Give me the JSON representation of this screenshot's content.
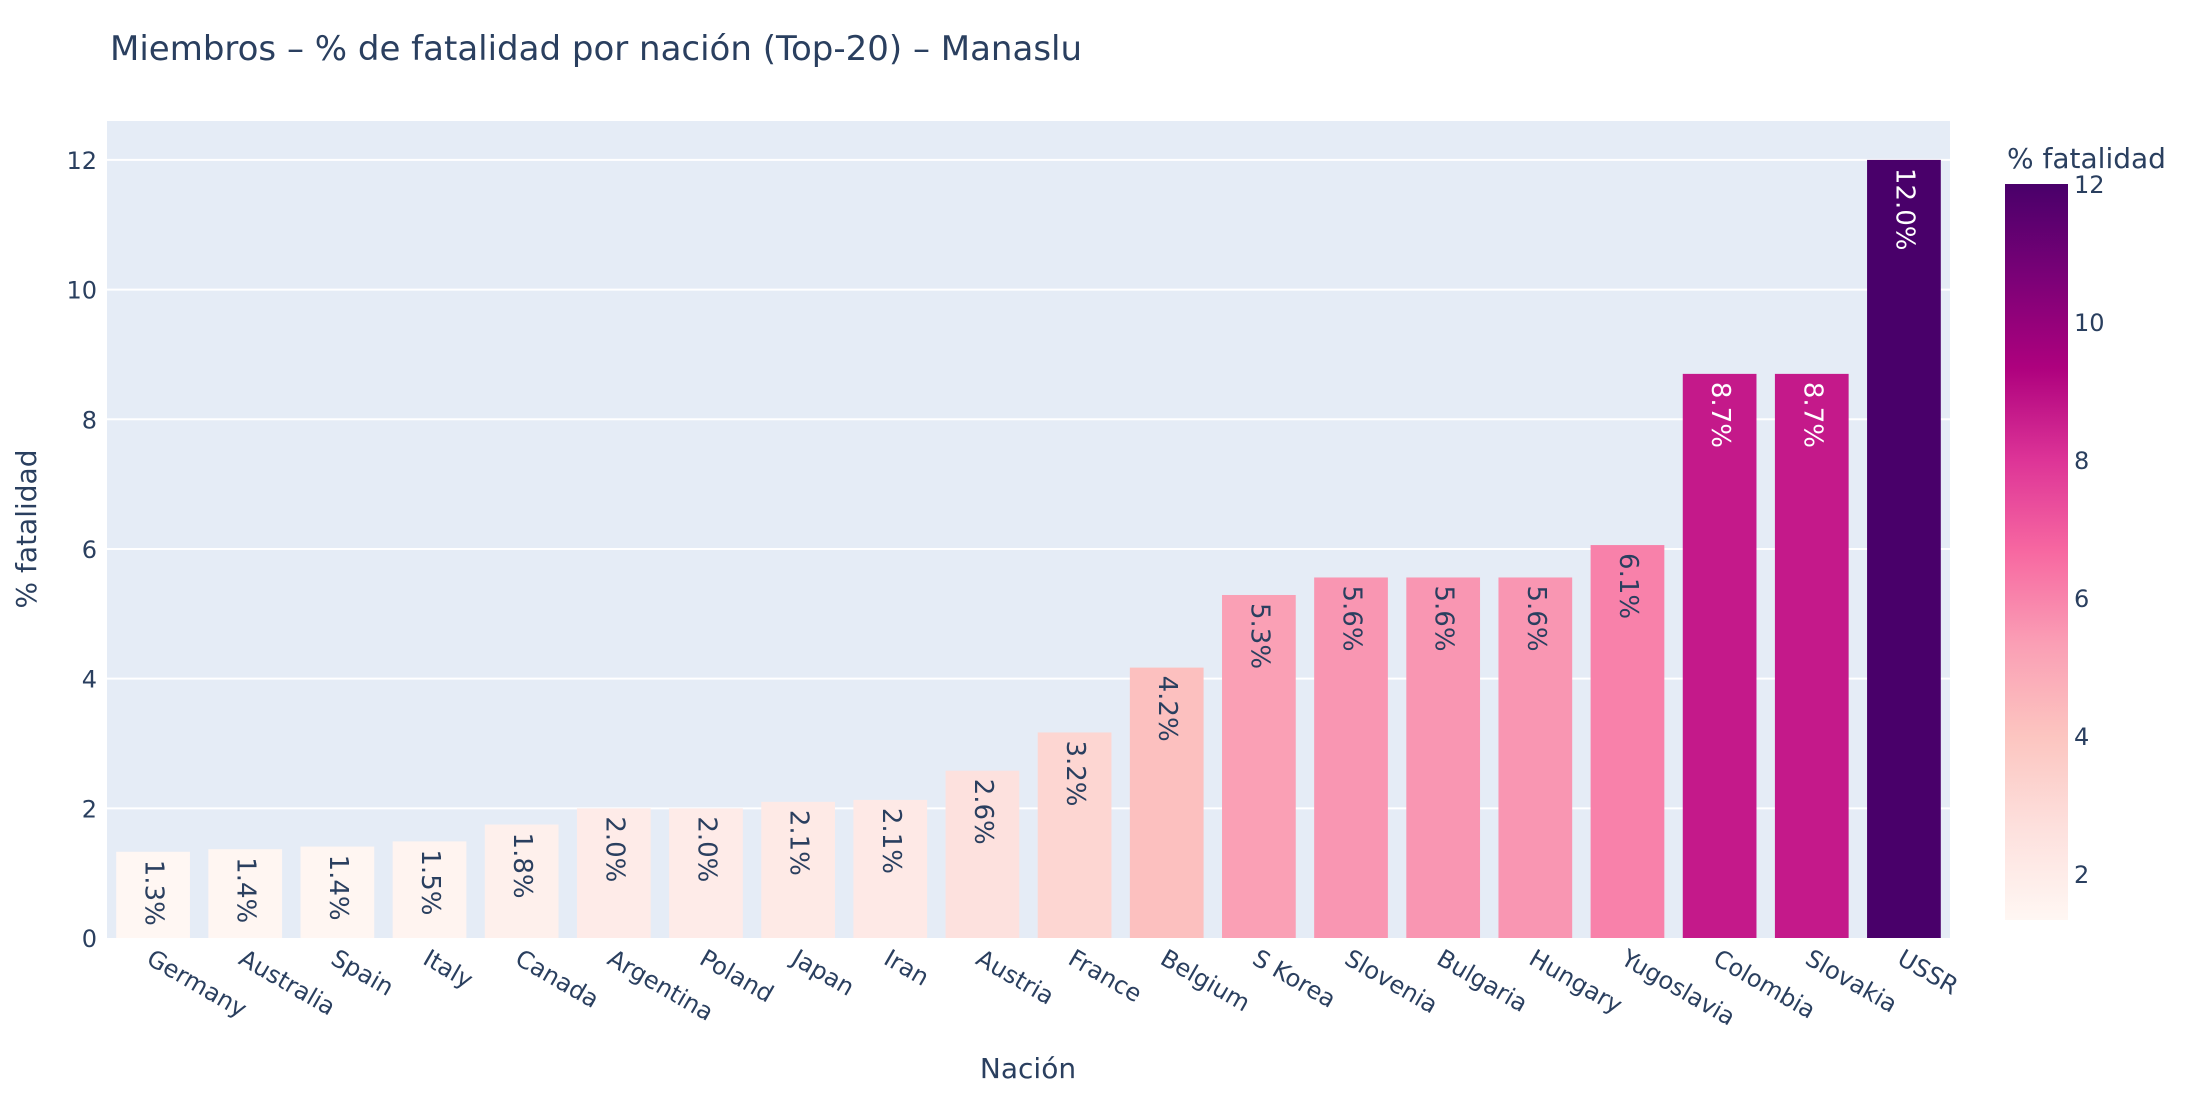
{
  "chart_data": {
    "type": "bar",
    "title": "Miembros – % de fatalidad por nación (Top-20) – Manaslu",
    "xlabel": "Nación",
    "ylabel": "% fatalidad",
    "ylim": [
      0,
      12.6
    ],
    "yticks": [
      0,
      2,
      4,
      6,
      8,
      10,
      12
    ],
    "grid": true,
    "categories": [
      "Germany",
      "Australia",
      "Spain",
      "Italy",
      "Canada",
      "Argentina",
      "Poland",
      "Japan",
      "Iran",
      "Austria",
      "France",
      "Belgium",
      "S Korea",
      "Slovenia",
      "Bulgaria",
      "Hungary",
      "Yugoslavia",
      "Colombia",
      "Slovakia",
      "USSR"
    ],
    "values": [
      1.33,
      1.37,
      1.41,
      1.49,
      1.75,
      2.0,
      2.0,
      2.1,
      2.13,
      2.58,
      3.17,
      4.17,
      5.29,
      5.56,
      5.56,
      5.56,
      6.06,
      8.7,
      8.7,
      12.0
    ],
    "labels": [
      "1.3%",
      "1.4%",
      "1.4%",
      "1.5%",
      "1.8%",
      "2.0%",
      "2.0%",
      "2.1%",
      "2.1%",
      "2.6%",
      "3.2%",
      "4.2%",
      "5.3%",
      "5.6%",
      "5.6%",
      "5.6%",
      "6.1%",
      "8.7%",
      "8.7%",
      "12.0%"
    ],
    "colorscale": {
      "name": "RdPu",
      "title": "% fatalidad",
      "range": [
        1.33,
        12.0
      ],
      "ticks": [
        2,
        4,
        6,
        8,
        10,
        12
      ],
      "stops": [
        "#fff7f3",
        "#fde0dd",
        "#fcc5c0",
        "#fa9fb5",
        "#f768a1",
        "#dd3497",
        "#ae017e",
        "#7a0177",
        "#49006a"
      ]
    },
    "colors": {
      "plot_background": "#e5ecf6",
      "gridline": "#ffffff",
      "text": "#2a3f5f"
    }
  }
}
